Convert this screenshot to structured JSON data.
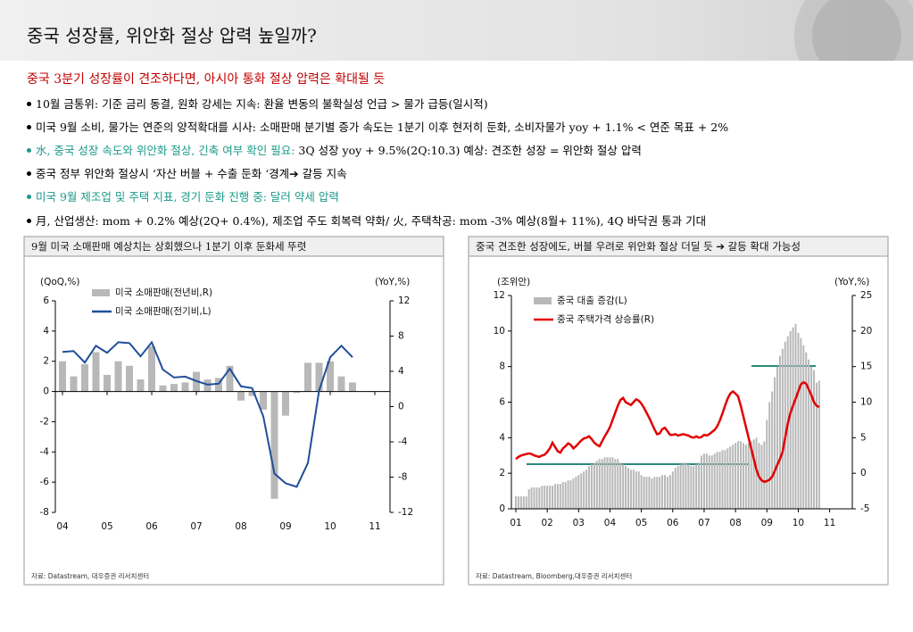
{
  "header": {
    "title": "중국 성장률, 위안화 절상 압력 높일까?"
  },
  "subtitle": {
    "text": "중국 3분기 성장률이 견조하다면, 아시아 통화 절상 압력은 확대될 듯",
    "color": "#c00000"
  },
  "bullets": [
    [
      {
        "text": "10월 금통위: 기준 금리 동결, 원화 강세는 지속: 환율 변동의 불확실성 언급 > 물가 급등(일시적)",
        "color": "#000000"
      }
    ],
    [
      {
        "text": "미국 9월 소비, 물가는 연준의 양적확대를 시사: 소매판매 분기별 증가 속도는 1분기 이후 현저히 둔화, 소비자물가 yoy + 1.1% < 연준 목표 + 2%",
        "color": "#000000"
      }
    ],
    [
      {
        "text": "水, 중국 성장 속도와 위안화 절상, 긴축 여부 확인 필요:",
        "color": "#1a9a8a"
      },
      {
        "text": " 3Q 성장 yoy + 9.5%(2Q:10.3) 예상: 견조한 성장 = 위안화 절상 압력",
        "color": "#000000"
      }
    ],
    [
      {
        "text": "중국 정부 위안화 절상시 ‘자산 버블 + 수출 둔화 ‘경계➔ 갈등 지속",
        "color": "#000000"
      }
    ],
    [
      {
        "text": "미국 9월 제조업 및 주택 지표, 경기 둔화 진행 중: 달러 약세 압력",
        "color": "#1a9a8a"
      }
    ],
    [
      {
        "text": "月, 산업생산: mom + 0.2% 예상(2Q+ 0.4%), 제조업 주도 회복력 약화/ 火, 주택착공: mom -3% 예상(8월+ 11%), 4Q 바닥권 통과 기대",
        "color": "#000000"
      }
    ]
  ],
  "chart_data": [
    {
      "type": "combo",
      "title": "9월 미국 소매판매 예상치는 상회했으나 1분기 이후 둔화세 뚜렷",
      "y_label": "(QoQ,%)",
      "y2_label": "(YoY,%)",
      "source": "자료: Datastream, 대우증권 리서치센터",
      "categories": [
        "04",
        null,
        null,
        null,
        "05",
        null,
        null,
        null,
        "06",
        null,
        null,
        null,
        "07",
        null,
        null,
        null,
        "08",
        null,
        null,
        null,
        "09",
        null,
        null,
        null,
        "10",
        null,
        null,
        null,
        "11"
      ],
      "series": [
        {
          "name": "미국 소매판매(전년비,R)",
          "type": "bar",
          "axis": "y",
          "color": "#b8b8b8",
          "values": [
            2.0,
            1.0,
            1.8,
            2.6,
            1.1,
            2.0,
            1.7,
            0.8,
            3.0,
            0.4,
            0.5,
            0.6,
            1.3,
            0.8,
            0.9,
            1.7,
            -0.6,
            -0.3,
            -1.2,
            -7.1,
            -1.6,
            -0.1,
            1.9,
            1.9,
            2.0,
            1.0,
            0.6,
            null,
            null
          ]
        },
        {
          "name": "미국 소매판매(전기비,L)",
          "type": "line",
          "axis": "y2",
          "color": "#1f4e99",
          "values": [
            6.2,
            6.3,
            5.0,
            6.9,
            6.1,
            7.3,
            7.2,
            5.7,
            7.3,
            4.2,
            3.3,
            3.4,
            2.9,
            2.5,
            2.6,
            4.3,
            2.3,
            2.1,
            -1.1,
            -7.6,
            -8.7,
            -9.1,
            -6.4,
            1.8,
            5.6,
            6.9,
            5.6,
            null,
            null
          ]
        }
      ],
      "ylim": [
        -8,
        6
      ],
      "yticks": [
        -8,
        -6,
        -4,
        -2,
        0,
        2,
        4,
        6
      ],
      "y2lim": [
        -12,
        12
      ],
      "y2ticks": [
        -12,
        -8,
        -4,
        0,
        4,
        8,
        12
      ]
    },
    {
      "type": "combo",
      "title": "중국 견조한 성장에도, 버블 우려로 위안화 절상 더딜 듯 ➔ 갈등 확대 가능성",
      "y_label": "(조위안)",
      "y2_label": "(YoY,%)",
      "source": "자료: Datastream, Bloomberg,대우증권 리서치센터",
      "categories": [
        "01",
        null,
        null,
        null,
        null,
        null,
        null,
        null,
        null,
        null,
        null,
        null,
        "02",
        null,
        null,
        null,
        null,
        null,
        null,
        null,
        null,
        null,
        null,
        null,
        "03",
        null,
        null,
        null,
        null,
        null,
        null,
        null,
        null,
        null,
        null,
        null,
        "04",
        null,
        null,
        null,
        null,
        null,
        null,
        null,
        null,
        null,
        null,
        null,
        "05",
        null,
        null,
        null,
        null,
        null,
        null,
        null,
        null,
        null,
        null,
        null,
        "06",
        null,
        null,
        null,
        null,
        null,
        null,
        null,
        null,
        null,
        null,
        null,
        "07",
        null,
        null,
        null,
        null,
        null,
        null,
        null,
        null,
        null,
        null,
        null,
        "08",
        null,
        null,
        null,
        null,
        null,
        null,
        null,
        null,
        null,
        null,
        null,
        "09",
        null,
        null,
        null,
        null,
        null,
        null,
        null,
        null,
        null,
        null,
        null,
        "10",
        null,
        null,
        null,
        null,
        null,
        null,
        null,
        null,
        null,
        null,
        null,
        "11"
      ],
      "series": [
        {
          "name": "중국 대출 증감(L)",
          "type": "bar",
          "axis": "y",
          "color": "#b8b8b8",
          "values": [
            0.7,
            0.7,
            0.7,
            0.7,
            0.7,
            1.1,
            1.2,
            1.2,
            1.2,
            1.2,
            1.3,
            1.3,
            1.3,
            1.3,
            1.3,
            1.4,
            1.4,
            1.4,
            1.5,
            1.5,
            1.6,
            1.6,
            1.7,
            1.8,
            1.9,
            2.0,
            2.1,
            2.2,
            2.4,
            2.5,
            2.6,
            2.7,
            2.8,
            2.8,
            2.9,
            2.9,
            2.9,
            2.9,
            2.8,
            2.8,
            2.6,
            2.5,
            2.4,
            2.3,
            2.2,
            2.2,
            2.1,
            2.1,
            1.9,
            1.8,
            1.8,
            1.8,
            1.7,
            1.8,
            1.8,
            1.8,
            1.9,
            1.9,
            1.8,
            1.9,
            2.1,
            2.3,
            2.4,
            2.5,
            2.6,
            2.6,
            2.5,
            2.4,
            2.4,
            2.5,
            2.6,
            3.0,
            3.1,
            3.1,
            3.0,
            3.0,
            3.1,
            3.2,
            3.2,
            3.3,
            3.3,
            3.4,
            3.5,
            3.6,
            3.7,
            3.8,
            3.8,
            3.7,
            3.6,
            3.7,
            3.8,
            3.9,
            4.0,
            3.7,
            3.6,
            3.8,
            5.0,
            6.0,
            6.6,
            7.4,
            8.0,
            8.6,
            9.0,
            9.4,
            9.7,
            10.0,
            10.2,
            10.4,
            9.9,
            9.6,
            9.2,
            8.8,
            8.4,
            8.0,
            7.8,
            7.1,
            7.2,
            null,
            null,
            null,
            null
          ]
        },
        {
          "name": "중국 주택가격 상승률(R)",
          "type": "line",
          "axis": "y2",
          "color": "#e00000",
          "values": [
            2.0,
            2.3,
            2.5,
            2.6,
            2.7,
            2.8,
            2.7,
            2.5,
            2.4,
            2.3,
            2.5,
            2.6,
            3.0,
            3.5,
            4.3,
            3.7,
            3.1,
            2.9,
            3.5,
            3.8,
            4.2,
            4.0,
            3.5,
            3.8,
            4.2,
            4.6,
            4.9,
            5.0,
            5.2,
            4.8,
            4.3,
            4.0,
            3.8,
            4.5,
            5.2,
            5.8,
            6.5,
            7.5,
            8.5,
            9.5,
            10.3,
            10.6,
            10.0,
            9.8,
            9.6,
            10.0,
            10.4,
            10.2,
            9.8,
            9.2,
            8.5,
            7.8,
            7.0,
            6.2,
            5.5,
            5.6,
            6.2,
            6.4,
            5.9,
            5.4,
            5.4,
            5.5,
            5.3,
            5.4,
            5.5,
            5.4,
            5.3,
            5.1,
            5.0,
            5.2,
            5.0,
            5.1,
            5.4,
            5.3,
            5.5,
            5.8,
            6.1,
            6.6,
            7.4,
            8.4,
            9.5,
            10.5,
            11.2,
            11.5,
            11.2,
            10.8,
            9.5,
            8.0,
            6.5,
            5.0,
            3.5,
            2.0,
            0.5,
            -0.5,
            -1.0,
            -1.2,
            -1.1,
            -0.9,
            -0.5,
            0.3,
            1.2,
            2.0,
            3.0,
            5.0,
            7.0,
            8.5,
            9.5,
            10.5,
            11.5,
            12.5,
            12.8,
            12.6,
            11.8,
            11.0,
            10.0,
            9.5,
            9.3,
            null,
            null,
            null,
            null
          ]
        }
      ],
      "ylim": [
        0,
        12
      ],
      "yticks": [
        0,
        2,
        4,
        6,
        8,
        10,
        12
      ],
      "y2lim": [
        -5,
        25
      ],
      "y2ticks": [
        -5,
        0,
        5,
        10,
        15,
        20,
        25
      ]
    }
  ]
}
